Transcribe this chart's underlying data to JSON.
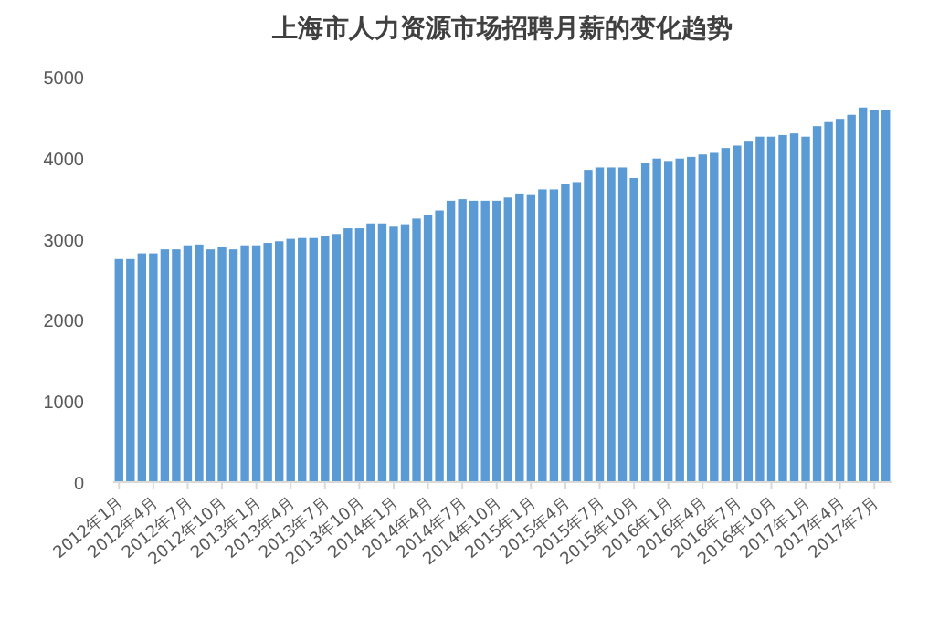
{
  "chart_data": {
    "type": "bar",
    "title": "上海市人力资源市场招聘月薪的变化趋势",
    "categories": [
      "2012年1月",
      null,
      null,
      "2012年4月",
      null,
      null,
      "2012年7月",
      null,
      null,
      "2012年10月",
      null,
      null,
      "2013年1月",
      null,
      null,
      "2013年4月",
      null,
      null,
      "2013年7月",
      null,
      null,
      "2013年10月",
      null,
      null,
      "2014年1月",
      null,
      null,
      "2014年4月",
      null,
      null,
      "2014年7月",
      null,
      null,
      "2014年10月",
      null,
      null,
      "2015年1月",
      null,
      null,
      "2015年4月",
      null,
      null,
      "2015年7月",
      null,
      null,
      "2015年10月",
      null,
      null,
      "2016年1月",
      null,
      null,
      "2016年4月",
      null,
      null,
      "2016年7月",
      null,
      null,
      "2016年10月",
      null,
      null,
      "2017年1月",
      null,
      null,
      "2017年4月",
      null,
      null,
      "2017年7月",
      null
    ],
    "values": [
      2750,
      2750,
      2820,
      2820,
      2870,
      2870,
      2920,
      2930,
      2870,
      2900,
      2870,
      2920,
      2920,
      2950,
      2970,
      3000,
      3010,
      3010,
      3040,
      3060,
      3130,
      3130,
      3190,
      3190,
      3150,
      3180,
      3250,
      3290,
      3350,
      3470,
      3490,
      3470,
      3470,
      3470,
      3510,
      3560,
      3540,
      3610,
      3610,
      3680,
      3700,
      3850,
      3880,
      3880,
      3880,
      3750,
      3940,
      3990,
      3960,
      3990,
      4010,
      4040,
      4060,
      4120,
      4150,
      4210,
      4260,
      4260,
      4280,
      4300,
      4260,
      4390,
      4440,
      4480,
      4530,
      4620,
      4590,
      4590
    ],
    "color": "#5b9bd5",
    "ylim": [
      0,
      5000
    ],
    "yticks": [
      0,
      1000,
      2000,
      3000,
      4000,
      5000
    ],
    "grid": false
  }
}
